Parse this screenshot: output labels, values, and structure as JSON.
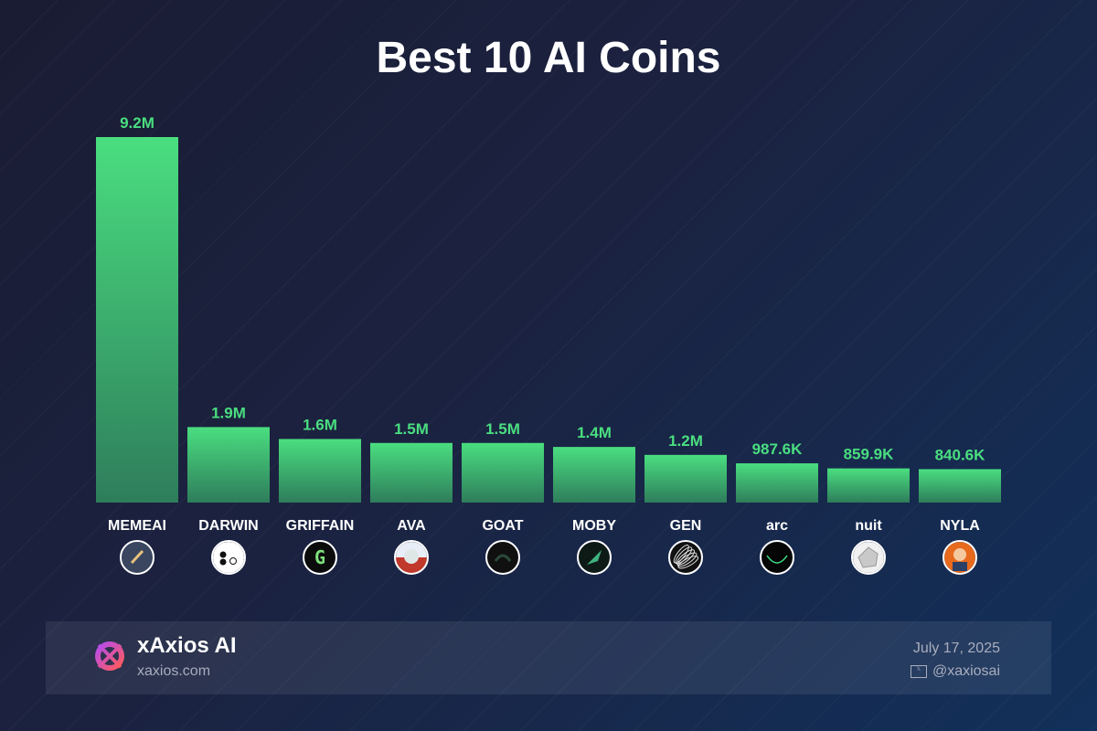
{
  "chart_data": {
    "type": "bar",
    "title": "Best 10 AI Coins",
    "categories": [
      "MEMEAI",
      "DARWIN",
      "GRIFFAIN",
      "AVA",
      "GOAT",
      "MOBY",
      "GEN",
      "arc",
      "nuit",
      "NYLA"
    ],
    "values": [
      9200000,
      1900000,
      1600000,
      1500000,
      1500000,
      1400000,
      1200000,
      987600,
      859900,
      840600
    ],
    "value_labels": [
      "9.2M",
      "1.9M",
      "1.6M",
      "1.5M",
      "1.5M",
      "1.4M",
      "1.2M",
      "987.6K",
      "859.9K",
      "840.6K"
    ],
    "ylim": [
      0,
      9200000
    ],
    "grid": false,
    "bar_color_top": "#4ade80",
    "bar_color_bottom": "#2e7d5b",
    "icons": [
      "memeai-token-icon",
      "darwin-token-icon",
      "griffain-token-icon",
      "ava-token-icon",
      "goat-token-icon",
      "moby-token-icon",
      "gen-token-icon",
      "arc-token-icon",
      "nuit-token-icon",
      "nyla-token-icon"
    ]
  },
  "footer": {
    "brand_name": "xAxios AI",
    "brand_url": "xaxios.com",
    "date": "July 17, 2025",
    "handle_icon": "x-icon",
    "handle_icon_glyph": "𝕏",
    "handle": "@xaxiosai"
  }
}
